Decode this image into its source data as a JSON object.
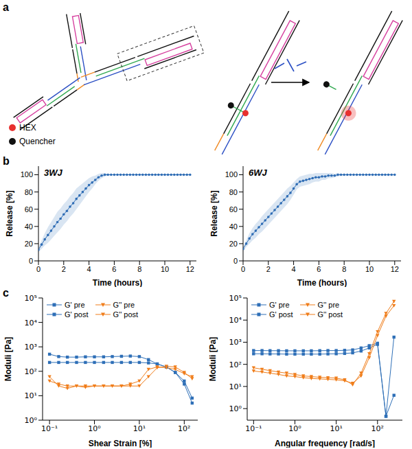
{
  "panels": [
    "a",
    "b",
    "c"
  ],
  "diagram": {
    "labels": [
      {
        "text": "HEX",
        "color": "#e8302f"
      },
      {
        "text": "Quencher",
        "color": "#111111"
      }
    ]
  },
  "chart_data": [
    {
      "type": "line",
      "title": "3WJ",
      "xlabel": "Time (hours)",
      "ylabel": "Release [%]",
      "xlim": [
        0,
        12.5
      ],
      "xticks": [
        0,
        2,
        4,
        6,
        8,
        10,
        12
      ],
      "ylim": [
        0,
        110
      ],
      "yticks": [
        0,
        20,
        40,
        60,
        80,
        100
      ],
      "x": [
        0,
        0.25,
        0.5,
        0.75,
        1,
        1.25,
        1.5,
        1.75,
        2,
        2.25,
        2.5,
        2.75,
        3,
        3.25,
        3.5,
        3.75,
        4,
        4.25,
        4.5,
        4.75,
        5,
        5.25,
        5.5,
        5.75,
        6,
        6.25,
        6.5,
        6.75,
        7,
        7.25,
        7.5,
        7.75,
        8,
        8.25,
        8.5,
        8.75,
        9,
        9.25,
        9.5,
        9.75,
        10,
        10.25,
        10.5,
        10.75,
        11,
        11.25,
        11.5,
        11.75,
        12
      ],
      "series": [
        {
          "color": "#2f6db5",
          "marker": "circle",
          "line_style": "solid",
          "values": [
            13,
            19,
            25,
            30,
            35,
            40,
            45,
            49,
            54,
            58,
            63,
            67,
            72,
            76,
            80,
            84,
            88,
            91,
            94,
            97,
            99,
            100,
            100,
            100,
            100,
            100,
            100,
            100,
            100,
            100,
            100,
            100,
            100,
            100,
            100,
            100,
            100,
            100,
            100,
            100,
            100,
            100,
            100,
            100,
            100,
            100,
            100,
            100,
            100
          ],
          "error": [
            3,
            5,
            7,
            9,
            10,
            11,
            12,
            12,
            12,
            12,
            12,
            12,
            12,
            11,
            10,
            9,
            8,
            7,
            5,
            4,
            3,
            2,
            1,
            0,
            0,
            0,
            0,
            0,
            0,
            0,
            0,
            0,
            0,
            0,
            0,
            0,
            0,
            0,
            0,
            0,
            0,
            0,
            0,
            0,
            0,
            0,
            0,
            0,
            0
          ]
        }
      ]
    },
    {
      "type": "line",
      "title": "6WJ",
      "xlabel": "Time (hours)",
      "ylabel": "Release [%]",
      "xlim": [
        0,
        12.5
      ],
      "xticks": [
        0,
        2,
        4,
        6,
        8,
        10,
        12
      ],
      "ylim": [
        0,
        110
      ],
      "yticks": [
        0,
        20,
        40,
        60,
        80,
        100
      ],
      "x": [
        0,
        0.25,
        0.5,
        0.75,
        1,
        1.25,
        1.5,
        1.75,
        2,
        2.25,
        2.5,
        2.75,
        3,
        3.25,
        3.5,
        3.75,
        4,
        4.25,
        4.5,
        4.75,
        5,
        5.25,
        5.5,
        5.75,
        6,
        6.25,
        6.5,
        6.75,
        7,
        7.25,
        7.5,
        7.75,
        8,
        8.25,
        8.5,
        8.75,
        9,
        9.25,
        9.5,
        9.75,
        10,
        10.25,
        10.5,
        10.75,
        11,
        11.25,
        11.5,
        11.75,
        12
      ],
      "series": [
        {
          "color": "#2f6db5",
          "marker": "circle",
          "line_style": "solid",
          "values": [
            14,
            20,
            26,
            31,
            35,
            39,
            43,
            47,
            51,
            55,
            59,
            63,
            67,
            71,
            75,
            79,
            84,
            89,
            92,
            93,
            94,
            95,
            96,
            97,
            97,
            98,
            98,
            99,
            99,
            99,
            100,
            100,
            100,
            100,
            100,
            100,
            100,
            100,
            100,
            100,
            100,
            100,
            100,
            100,
            100,
            100,
            100,
            100,
            100
          ],
          "error": [
            3,
            4,
            6,
            7,
            8,
            8,
            9,
            9,
            9,
            9,
            9,
            9,
            9,
            9,
            9,
            8,
            7,
            6,
            6,
            6,
            6,
            6,
            5,
            5,
            5,
            4,
            4,
            3,
            3,
            2,
            2,
            1,
            1,
            0,
            0,
            0,
            0,
            0,
            0,
            0,
            0,
            0,
            0,
            0,
            0,
            0,
            0,
            0,
            0
          ]
        }
      ]
    },
    {
      "type": "line",
      "xlabel": "Shear Strain [%]",
      "ylabel": "Moduli [Pa]",
      "log": true,
      "legend": "upper left",
      "xlim": [
        0.07,
        200
      ],
      "xticks": [
        {
          "value": 0.1,
          "label": "10⁻¹"
        },
        {
          "value": 1,
          "label": "10⁰"
        },
        {
          "value": 10,
          "label": "10¹"
        },
        {
          "value": 100,
          "label": "10²"
        }
      ],
      "ylim": [
        1,
        100000
      ],
      "yticks": [
        {
          "value": 1,
          "label": "10⁰"
        },
        {
          "value": 10,
          "label": "10¹"
        },
        {
          "value": 100,
          "label": "10²"
        },
        {
          "value": 1000,
          "label": "10³"
        },
        {
          "value": 10000,
          "label": "10⁴"
        },
        {
          "value": 100000,
          "label": "10⁵"
        }
      ],
      "x": [
        0.1,
        0.16,
        0.25,
        0.4,
        0.63,
        1,
        1.6,
        2.5,
        4,
        6.3,
        10,
        16,
        25,
        40,
        63,
        100,
        150
      ],
      "series": [
        {
          "name": "G' pre",
          "color": "#2e6fb7",
          "marker": "square",
          "line_style": "solid",
          "values": [
            500,
            400,
            380,
            380,
            390,
            390,
            390,
            400,
            410,
            420,
            400,
            300,
            200,
            150,
            90,
            30,
            5
          ]
        },
        {
          "name": "G' post",
          "color": "#2e6fb7",
          "marker": "square",
          "line_style": "solid",
          "values": [
            230,
            230,
            230,
            230,
            230,
            230,
            230,
            230,
            230,
            230,
            230,
            220,
            200,
            150,
            90,
            40,
            8
          ]
        },
        {
          "name": "G'' pre",
          "color": "#f07d1a",
          "marker": "triangle-down",
          "line_style": "solid",
          "values": [
            60,
            25,
            20,
            25,
            22,
            25,
            25,
            25,
            25,
            25,
            25,
            60,
            140,
            160,
            150,
            90,
            50
          ]
        },
        {
          "name": "G'' post",
          "color": "#f07d1a",
          "marker": "triangle-down",
          "line_style": "solid",
          "values": [
            40,
            30,
            25,
            25,
            25,
            25,
            25,
            25,
            25,
            30,
            40,
            120,
            150,
            140,
            120,
            80,
            60
          ]
        }
      ]
    },
    {
      "type": "line",
      "xlabel": "Angular frequency [rad/s]",
      "ylabel": "Moduli [Pa]",
      "log": true,
      "legend": "upper left",
      "xlim": [
        0.07,
        400
      ],
      "xticks": [
        {
          "value": 0.1,
          "label": "10⁻¹"
        },
        {
          "value": 1,
          "label": "10⁰"
        },
        {
          "value": 10,
          "label": "10¹"
        },
        {
          "value": 100,
          "label": "10²"
        }
      ],
      "ylim": [
        0.3,
        100000
      ],
      "yticks": [
        {
          "value": 1,
          "label": "10⁰"
        },
        {
          "value": 10,
          "label": "10¹"
        },
        {
          "value": 100,
          "label": "10²"
        },
        {
          "value": 1000,
          "label": "10³"
        },
        {
          "value": 10000,
          "label": "10⁴"
        },
        {
          "value": 100000,
          "label": "10⁵"
        }
      ],
      "x": [
        0.1,
        0.16,
        0.25,
        0.4,
        0.63,
        1,
        1.6,
        2.5,
        4,
        6.3,
        10,
        16,
        25,
        40,
        63,
        100,
        160,
        250
      ],
      "series": [
        {
          "name": "G' pre",
          "color": "#2e6fb7",
          "marker": "square",
          "line_style": "solid",
          "values": [
            420,
            420,
            415,
            415,
            410,
            410,
            410,
            410,
            415,
            420,
            420,
            430,
            450,
            550,
            700,
            900,
            0.45,
            1700
          ]
        },
        {
          "name": "G' post",
          "color": "#2e6fb7",
          "marker": "square",
          "line_style": "solid",
          "values": [
            300,
            300,
            295,
            295,
            290,
            290,
            290,
            290,
            290,
            295,
            300,
            310,
            330,
            400,
            550,
            800,
            0.45,
            4
          ]
        },
        {
          "name": "G'' pre",
          "color": "#f07d1a",
          "marker": "triangle-down",
          "line_style": "solid",
          "values": [
            70,
            60,
            52,
            45,
            40,
            35,
            30,
            28,
            26,
            25,
            24,
            20,
            12,
            40,
            300,
            3000,
            20000,
            70000
          ]
        },
        {
          "name": "G'' post",
          "color": "#f07d1a",
          "marker": "triangle-down",
          "line_style": "solid",
          "values": [
            50,
            45,
            40,
            35,
            30,
            28,
            25,
            23,
            22,
            21,
            20,
            18,
            14,
            30,
            200,
            2000,
            15000,
            45000
          ]
        }
      ]
    }
  ]
}
